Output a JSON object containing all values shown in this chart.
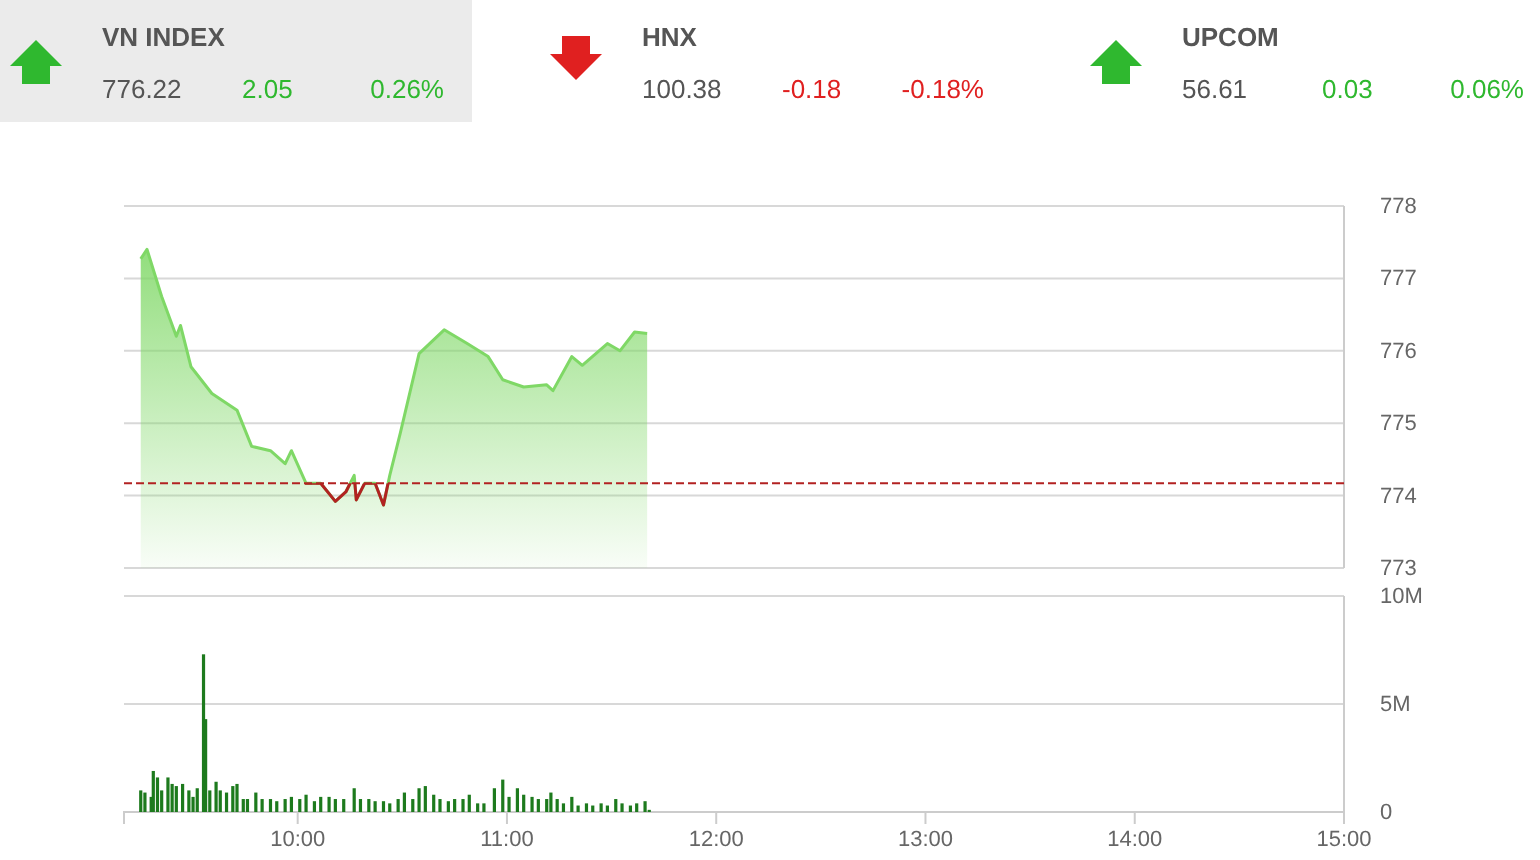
{
  "chart_data": [
    {
      "type": "other",
      "title": "VN INDEX",
      "values": [
        776.22,
        2.05,
        0.26
      ],
      "value_labels": [
        "776.22",
        "2.05",
        "0.26%"
      ],
      "color": "#2fb82f"
    },
    {
      "type": "other",
      "title": "HNX",
      "values": [
        100.38,
        -0.18,
        -0.18
      ],
      "value_labels": [
        "100.38",
        "-0.18",
        "-0.18%"
      ],
      "color": "#e02020"
    },
    {
      "type": "other",
      "title": "UPCOM",
      "values": [
        56.61,
        0.03,
        0.06
      ],
      "value_labels": [
        "56.61",
        "0.03",
        "0.06%"
      ],
      "color": "#2fb82f"
    },
    {
      "type": "area",
      "xlim": [
        9.17,
        15
      ],
      "ylim": [
        773,
        778
      ],
      "yticks": [
        773,
        774,
        775,
        776,
        777,
        778
      ],
      "grid": "y",
      "tick_labels": "y",
      "ref_lines": [
        {
          "axis": "y",
          "value": 774.17,
          "color": "#b22222",
          "line_style": "dashed"
        }
      ],
      "series": [
        {
          "color": "#7fd866",
          "x": [
            9.25,
            9.28,
            9.35,
            9.42,
            9.44,
            9.49,
            9.59,
            9.71,
            9.78,
            9.87,
            9.94,
            9.97,
            10.04,
            10.11,
            10.18,
            10.23,
            10.27,
            10.28,
            10.32,
            10.37,
            10.41,
            10.44,
            10.49,
            10.58,
            10.7,
            10.81,
            10.91,
            10.98,
            11.08,
            11.19,
            11.22,
            11.31,
            11.36,
            11.48,
            11.54,
            11.61,
            11.67
          ],
          "values": [
            777.27,
            777.4,
            776.75,
            776.2,
            776.35,
            775.78,
            775.41,
            775.18,
            774.68,
            774.62,
            774.44,
            774.62,
            774.17,
            774.17,
            773.92,
            774.05,
            774.28,
            773.94,
            774.17,
            774.17,
            773.87,
            774.28,
            774.86,
            775.96,
            776.29,
            776.1,
            775.92,
            775.6,
            775.5,
            775.53,
            775.45,
            775.92,
            775.8,
            776.1,
            776.0,
            776.26,
            776.24
          ]
        }
      ]
    },
    {
      "type": "bar",
      "color": "#1d7a1d",
      "xlim": [
        9.17,
        15
      ],
      "ylim": [
        0,
        10
      ],
      "yticks": [
        {
          "value": 0,
          "label": "0"
        },
        {
          "value": 5,
          "label": "5M"
        },
        {
          "value": 10,
          "label": "10M"
        }
      ],
      "xticks": [
        {
          "value": 10,
          "label": "10:00"
        },
        {
          "value": 11,
          "label": "11:00"
        },
        {
          "value": 12,
          "label": "12:00"
        },
        {
          "value": 13,
          "label": "13:00"
        },
        {
          "value": 14,
          "label": "14:00"
        },
        {
          "value": 15,
          "label": "15:00"
        }
      ],
      "grid": "y",
      "x": [
        9.25,
        9.27,
        9.3,
        9.31,
        9.33,
        9.35,
        9.38,
        9.4,
        9.42,
        9.45,
        9.48,
        9.5,
        9.52,
        9.55,
        9.56,
        9.58,
        9.61,
        9.63,
        9.66,
        9.69,
        9.71,
        9.74,
        9.76,
        9.8,
        9.83,
        9.87,
        9.9,
        9.94,
        9.97,
        10.01,
        10.04,
        10.08,
        10.11,
        10.15,
        10.18,
        10.22,
        10.27,
        10.3,
        10.34,
        10.37,
        10.41,
        10.44,
        10.48,
        10.51,
        10.55,
        10.58,
        10.61,
        10.65,
        10.68,
        10.72,
        10.75,
        10.79,
        10.82,
        10.86,
        10.89,
        10.94,
        10.98,
        11.01,
        11.05,
        11.08,
        11.12,
        11.15,
        11.19,
        11.21,
        11.24,
        11.27,
        11.31,
        11.34,
        11.38,
        11.41,
        11.45,
        11.48,
        11.52,
        11.55,
        11.59,
        11.62,
        11.66,
        11.68
      ],
      "values": [
        1.0,
        0.9,
        0.7,
        1.9,
        1.6,
        1.0,
        1.6,
        1.3,
        1.2,
        1.3,
        1.0,
        0.7,
        1.1,
        7.3,
        4.3,
        1.0,
        1.4,
        1.0,
        0.9,
        1.2,
        1.3,
        0.6,
        0.6,
        0.9,
        0.6,
        0.6,
        0.5,
        0.6,
        0.7,
        0.6,
        0.8,
        0.5,
        0.7,
        0.7,
        0.6,
        0.6,
        1.1,
        0.6,
        0.6,
        0.5,
        0.5,
        0.4,
        0.6,
        0.9,
        0.6,
        1.1,
        1.2,
        0.8,
        0.6,
        0.5,
        0.6,
        0.6,
        0.8,
        0.4,
        0.4,
        1.1,
        1.5,
        0.7,
        1.1,
        0.8,
        0.7,
        0.6,
        0.6,
        0.9,
        0.6,
        0.4,
        0.7,
        0.3,
        0.4,
        0.3,
        0.4,
        0.3,
        0.6,
        0.4,
        0.3,
        0.4,
        0.5,
        0.1
      ]
    }
  ]
}
